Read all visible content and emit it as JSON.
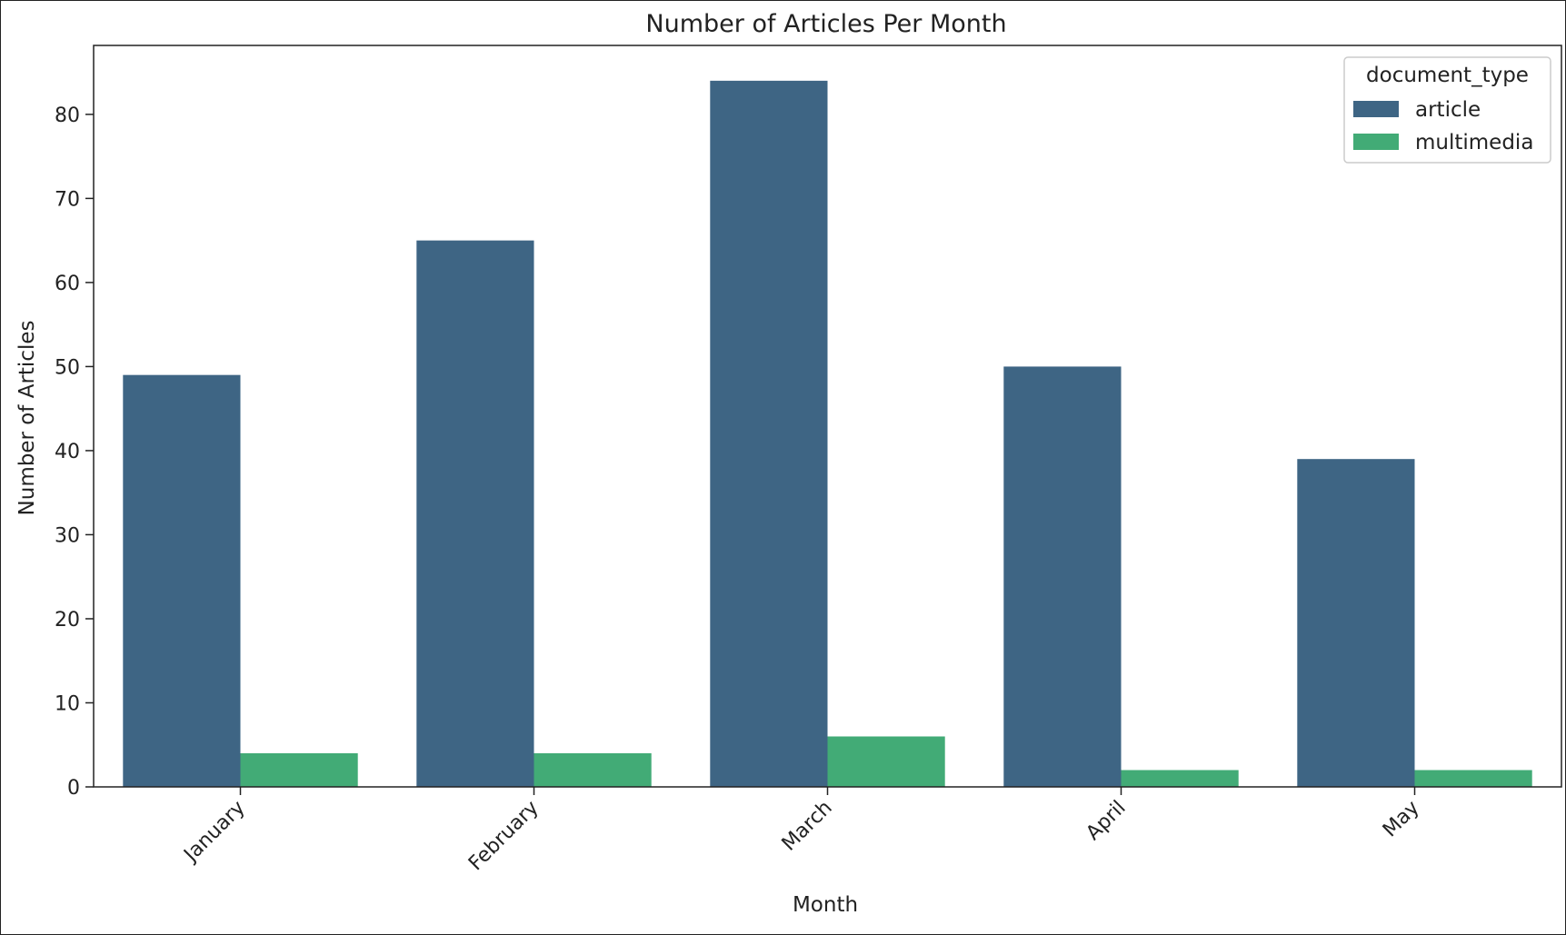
{
  "chart_data": {
    "type": "bar",
    "title": "Number of Articles Per Month",
    "xlabel": "Month",
    "ylabel": "Number of Articles",
    "categories": [
      "January",
      "February",
      "March",
      "April",
      "May"
    ],
    "series": [
      {
        "name": "article",
        "color": "#3e6584",
        "values": [
          49,
          65,
          84,
          50,
          39
        ]
      },
      {
        "name": "multimedia",
        "color": "#42ab76",
        "values": [
          4,
          4,
          6,
          2,
          2
        ]
      }
    ],
    "ylim": [
      0,
      88.2
    ],
    "yticks": [
      0,
      10,
      20,
      30,
      40,
      50,
      60,
      70,
      80
    ],
    "grid": false,
    "legend": {
      "title": "document_type",
      "placement": "top-right"
    }
  }
}
